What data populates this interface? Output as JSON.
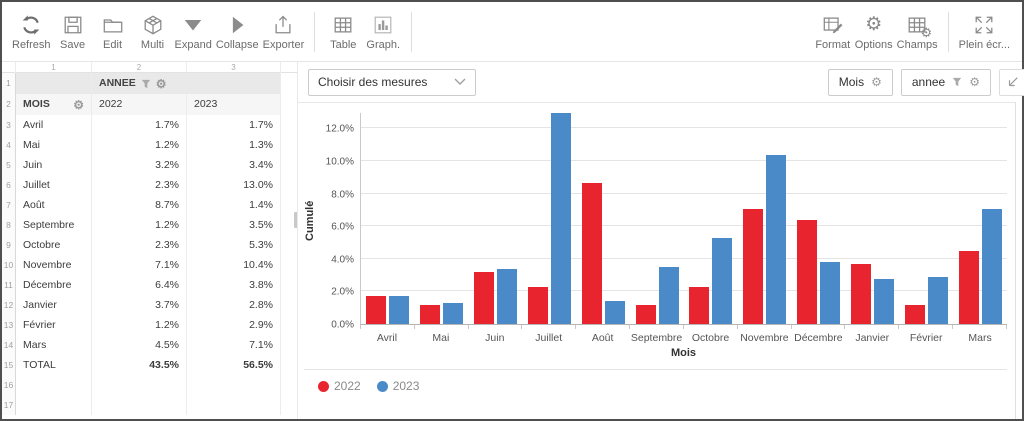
{
  "toolbar": {
    "left": [
      {
        "icon": "refresh-icon",
        "label": "Refresh"
      },
      {
        "icon": "save-icon",
        "label": "Save"
      },
      {
        "icon": "folder-icon",
        "label": "Edit"
      },
      {
        "icon": "cube-icon",
        "label": "Multi"
      },
      {
        "icon": "expand-icon",
        "label": "Expand"
      },
      {
        "icon": "collapse-icon",
        "label": "Collapse"
      },
      {
        "icon": "export-icon",
        "label": "Exporter"
      }
    ],
    "view": [
      {
        "icon": "table-icon",
        "label": "Table"
      },
      {
        "icon": "graph-icon",
        "label": "Graph."
      }
    ],
    "right": [
      {
        "icon": "format-icon",
        "label": "Format"
      },
      {
        "icon": "options-icon",
        "label": "Options"
      },
      {
        "icon": "champs-icon",
        "label": "Champs"
      }
    ],
    "fullscreen_label": "Plein écr..."
  },
  "table": {
    "col_numbers": [
      "1",
      "2",
      "3"
    ],
    "corner_header": "ANNEE",
    "row_header": "MOIS",
    "year_columns": [
      "2022",
      "2023"
    ],
    "rows": [
      {
        "num": "3",
        "label": "Avril",
        "values": [
          "1.7%",
          "1.7%"
        ],
        "bold": false
      },
      {
        "num": "4",
        "label": "Mai",
        "values": [
          "1.2%",
          "1.3%"
        ],
        "bold": false
      },
      {
        "num": "5",
        "label": "Juin",
        "values": [
          "3.2%",
          "3.4%"
        ],
        "bold": false
      },
      {
        "num": "6",
        "label": "Juillet",
        "values": [
          "2.3%",
          "13.0%"
        ],
        "bold": false
      },
      {
        "num": "7",
        "label": "Août",
        "values": [
          "8.7%",
          "1.4%"
        ],
        "bold": false
      },
      {
        "num": "8",
        "label": "Septembre",
        "values": [
          "1.2%",
          "3.5%"
        ],
        "bold": false
      },
      {
        "num": "9",
        "label": "Octobre",
        "values": [
          "2.3%",
          "5.3%"
        ],
        "bold": false
      },
      {
        "num": "10",
        "label": "Novembre",
        "values": [
          "7.1%",
          "10.4%"
        ],
        "bold": false
      },
      {
        "num": "11",
        "label": "Décembre",
        "values": [
          "6.4%",
          "3.8%"
        ],
        "bold": false
      },
      {
        "num": "12",
        "label": "Janvier",
        "values": [
          "3.7%",
          "2.8%"
        ],
        "bold": false
      },
      {
        "num": "13",
        "label": "Février",
        "values": [
          "1.2%",
          "2.9%"
        ],
        "bold": false
      },
      {
        "num": "14",
        "label": "Mars",
        "values": [
          "4.5%",
          "7.1%"
        ],
        "bold": false
      },
      {
        "num": "15",
        "label": "TOTAL",
        "values": [
          "43.5%",
          "56.5%"
        ],
        "bold": true
      },
      {
        "num": "16",
        "label": "",
        "values": [
          "",
          ""
        ],
        "bold": false
      },
      {
        "num": "17",
        "label": "",
        "values": [
          "",
          ""
        ],
        "bold": false
      }
    ]
  },
  "chart_panel": {
    "measures_dropdown": "Choisir des mesures",
    "field_buttons": [
      {
        "label": "Mois",
        "has_filter": false
      },
      {
        "label": "annee",
        "has_filter": true
      }
    ]
  },
  "chart_data": {
    "type": "bar",
    "title": "",
    "categories": [
      "Avril",
      "Mai",
      "Juin",
      "Juillet",
      "Août",
      "Septembre",
      "Octobre",
      "Novembre",
      "Décembre",
      "Janvier",
      "Février",
      "Mars"
    ],
    "series": [
      {
        "name": "2022",
        "color": "#e8252e",
        "values": [
          1.7,
          1.2,
          3.2,
          2.3,
          8.7,
          1.2,
          2.3,
          7.1,
          6.4,
          3.7,
          1.2,
          4.5
        ]
      },
      {
        "name": "2023",
        "color": "#4b8ac9",
        "values": [
          1.7,
          1.3,
          3.4,
          13.0,
          1.4,
          3.5,
          5.3,
          10.4,
          3.8,
          2.8,
          2.9,
          7.1
        ]
      }
    ],
    "xlabel": "Mois",
    "ylabel": "Cumulé",
    "ylim": [
      0,
      13
    ],
    "ytick_values": [
      0,
      2,
      4,
      6,
      8,
      10,
      12
    ],
    "ytick_labels": [
      "0.0%",
      "2.0%",
      "4.0%",
      "6.0%",
      "8.0%",
      "10.0%",
      "12.0%"
    ],
    "grid": true,
    "legend_position": "bottom-left"
  }
}
